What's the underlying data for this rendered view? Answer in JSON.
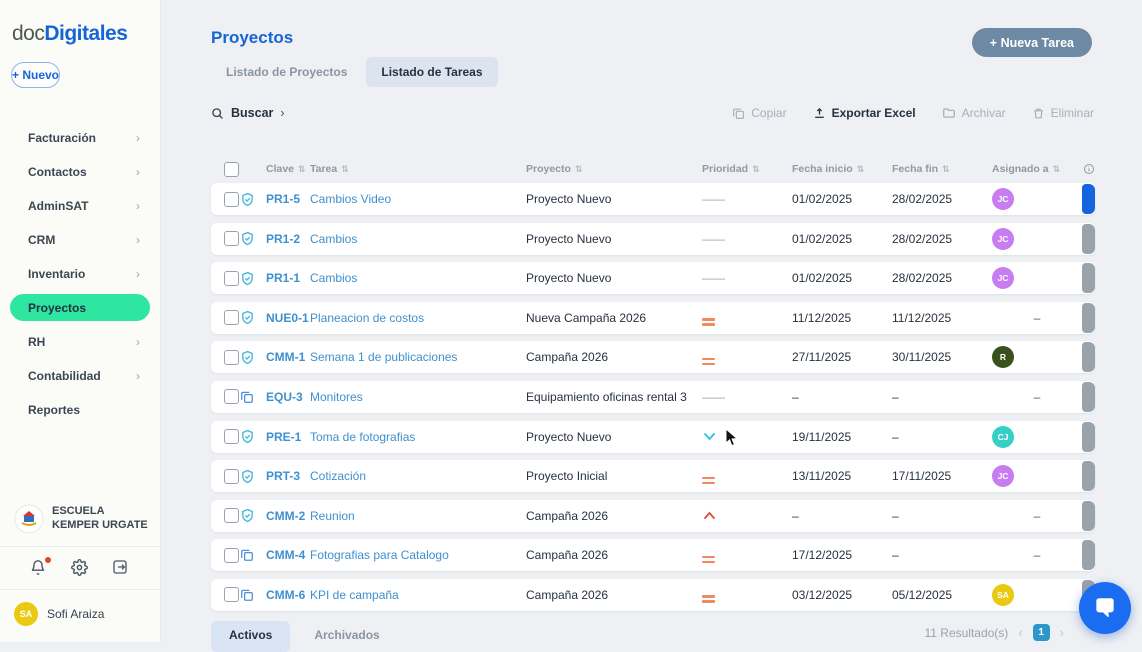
{
  "brand": {
    "logo_prefix": "doc",
    "logo_suffix": "Digitales",
    "new_button_label": "+ Nuevo"
  },
  "sidebar": {
    "items": [
      {
        "label": "Facturación",
        "chevron": true,
        "active": false
      },
      {
        "label": "Contactos",
        "chevron": true,
        "active": false
      },
      {
        "label": "AdminSAT",
        "chevron": true,
        "active": false
      },
      {
        "label": "CRM",
        "chevron": true,
        "active": false
      },
      {
        "label": "Inventario",
        "chevron": true,
        "active": false
      },
      {
        "label": "Proyectos",
        "chevron": false,
        "active": true
      },
      {
        "label": "RH",
        "chevron": true,
        "active": false
      },
      {
        "label": "Contabilidad",
        "chevron": true,
        "active": false
      },
      {
        "label": "Reportes",
        "chevron": false,
        "active": false
      }
    ],
    "account_name": "ESCUELA KEMPER URGATE",
    "user": {
      "initials": "SA",
      "name": "Sofi Araiza",
      "avatar_color": "#e9c912"
    }
  },
  "header": {
    "title": "Proyectos",
    "tabs": [
      {
        "label": "Listado de Proyectos",
        "active": false
      },
      {
        "label": "Listado de Tareas",
        "active": true
      }
    ],
    "new_task_label": "+ Nueva Tarea"
  },
  "toolbar": {
    "search_label": "Buscar",
    "actions": [
      {
        "label": "Copiar",
        "icon": "copy",
        "enabled": false
      },
      {
        "label": "Exportar Excel",
        "icon": "export",
        "enabled": true
      },
      {
        "label": "Archivar",
        "icon": "archive",
        "enabled": false
      },
      {
        "label": "Eliminar",
        "icon": "trash",
        "enabled": false
      }
    ]
  },
  "table": {
    "columns": [
      "Clave",
      "Tarea",
      "Proyecto",
      "Prioridad",
      "Fecha inicio",
      "Fecha fin",
      "Asignado a"
    ],
    "rows": [
      {
        "icon": "shield",
        "key": "PR1-5",
        "task": "Cambios Video",
        "project": "Proyecto Nuevo",
        "priority": "none",
        "start": "01/02/2025",
        "end": "28/02/2025",
        "assignee": {
          "initials": "JC",
          "color": "#c77cf0"
        },
        "bar_color": "#1464e0"
      },
      {
        "icon": "shield",
        "key": "PR1-2",
        "task": "Cambios",
        "project": "Proyecto Nuevo",
        "priority": "none",
        "start": "01/02/2025",
        "end": "28/02/2025",
        "assignee": {
          "initials": "JC",
          "color": "#c77cf0"
        },
        "bar_color": "#99a3ac"
      },
      {
        "icon": "shield",
        "key": "PR1-1",
        "task": "Cambios",
        "project": "Proyecto Nuevo",
        "priority": "none",
        "start": "01/02/2025",
        "end": "28/02/2025",
        "assignee": {
          "initials": "JC",
          "color": "#c77cf0"
        },
        "bar_color": "#99a3ac"
      },
      {
        "icon": "shield",
        "key": "NUE0-1",
        "task": "Planeacion de costos",
        "project": "Nueva Campaña 2026",
        "priority": "medium",
        "start": "11/12/2025",
        "end": "11/12/2025",
        "assignee": null,
        "bar_color": "#99a3ac"
      },
      {
        "icon": "shield",
        "key": "CMM-1",
        "task": "Semana 1 de publicaciones",
        "project": "Campaña 2026",
        "priority": "medium",
        "start": "27/11/2025",
        "end": "30/11/2025",
        "assignee": {
          "initials": "R",
          "color": "#39511d"
        },
        "bar_color": "#99a3ac"
      },
      {
        "icon": "copy",
        "key": "EQU-3",
        "task": "Monitores",
        "project": "Equipamiento oficinas rental 3",
        "priority": "none",
        "start": "–",
        "end": "–",
        "assignee": null,
        "bar_color": "#99a3ac"
      },
      {
        "icon": "shield",
        "key": "PRE-1",
        "task": "Toma de fotografias",
        "project": "Proyecto Nuevo",
        "priority": "low",
        "start": "19/11/2025",
        "end": "–",
        "assignee": {
          "initials": "CJ",
          "color": "#35d0c3"
        },
        "bar_color": "#99a3ac"
      },
      {
        "icon": "shield",
        "key": "PRT-3",
        "task": "Cotización",
        "project": "Proyecto Inicial",
        "priority": "medium",
        "start": "13/11/2025",
        "end": "17/11/2025",
        "assignee": {
          "initials": "JC",
          "color": "#c77cf0"
        },
        "bar_color": "#99a3ac"
      },
      {
        "icon": "shield",
        "key": "CMM-2",
        "task": "Reunion",
        "project": "Campaña 2026",
        "priority": "high",
        "start": "–",
        "end": "–",
        "assignee": null,
        "bar_color": "#99a3ac"
      },
      {
        "icon": "copy",
        "key": "CMM-4",
        "task": "Fotografias para Catalogo",
        "project": "Campaña 2026",
        "priority": "medium",
        "start": "17/12/2025",
        "end": "–",
        "assignee": null,
        "bar_color": "#99a3ac"
      },
      {
        "icon": "copy",
        "key": "CMM-6",
        "task": "KPI de campaña",
        "project": "Campaña 2026",
        "priority": "medium",
        "start": "03/12/2025",
        "end": "05/12/2025",
        "assignee": {
          "initials": "SA",
          "color": "#e9c912"
        },
        "bar_color": "#99a3ac"
      }
    ]
  },
  "footer": {
    "tabs": [
      {
        "label": "Activos",
        "active": true
      },
      {
        "label": "Archivados",
        "active": false
      }
    ],
    "results_label": "11 Resultado(s)",
    "page": "1"
  },
  "colors": {
    "accent_blue": "#1565d8",
    "active_green": "#2ee6a0",
    "priority_medium": "#ef8a5e",
    "priority_high": "#e04f3f",
    "priority_low": "#2cc5e2",
    "link_blue": "#3f90ce"
  }
}
